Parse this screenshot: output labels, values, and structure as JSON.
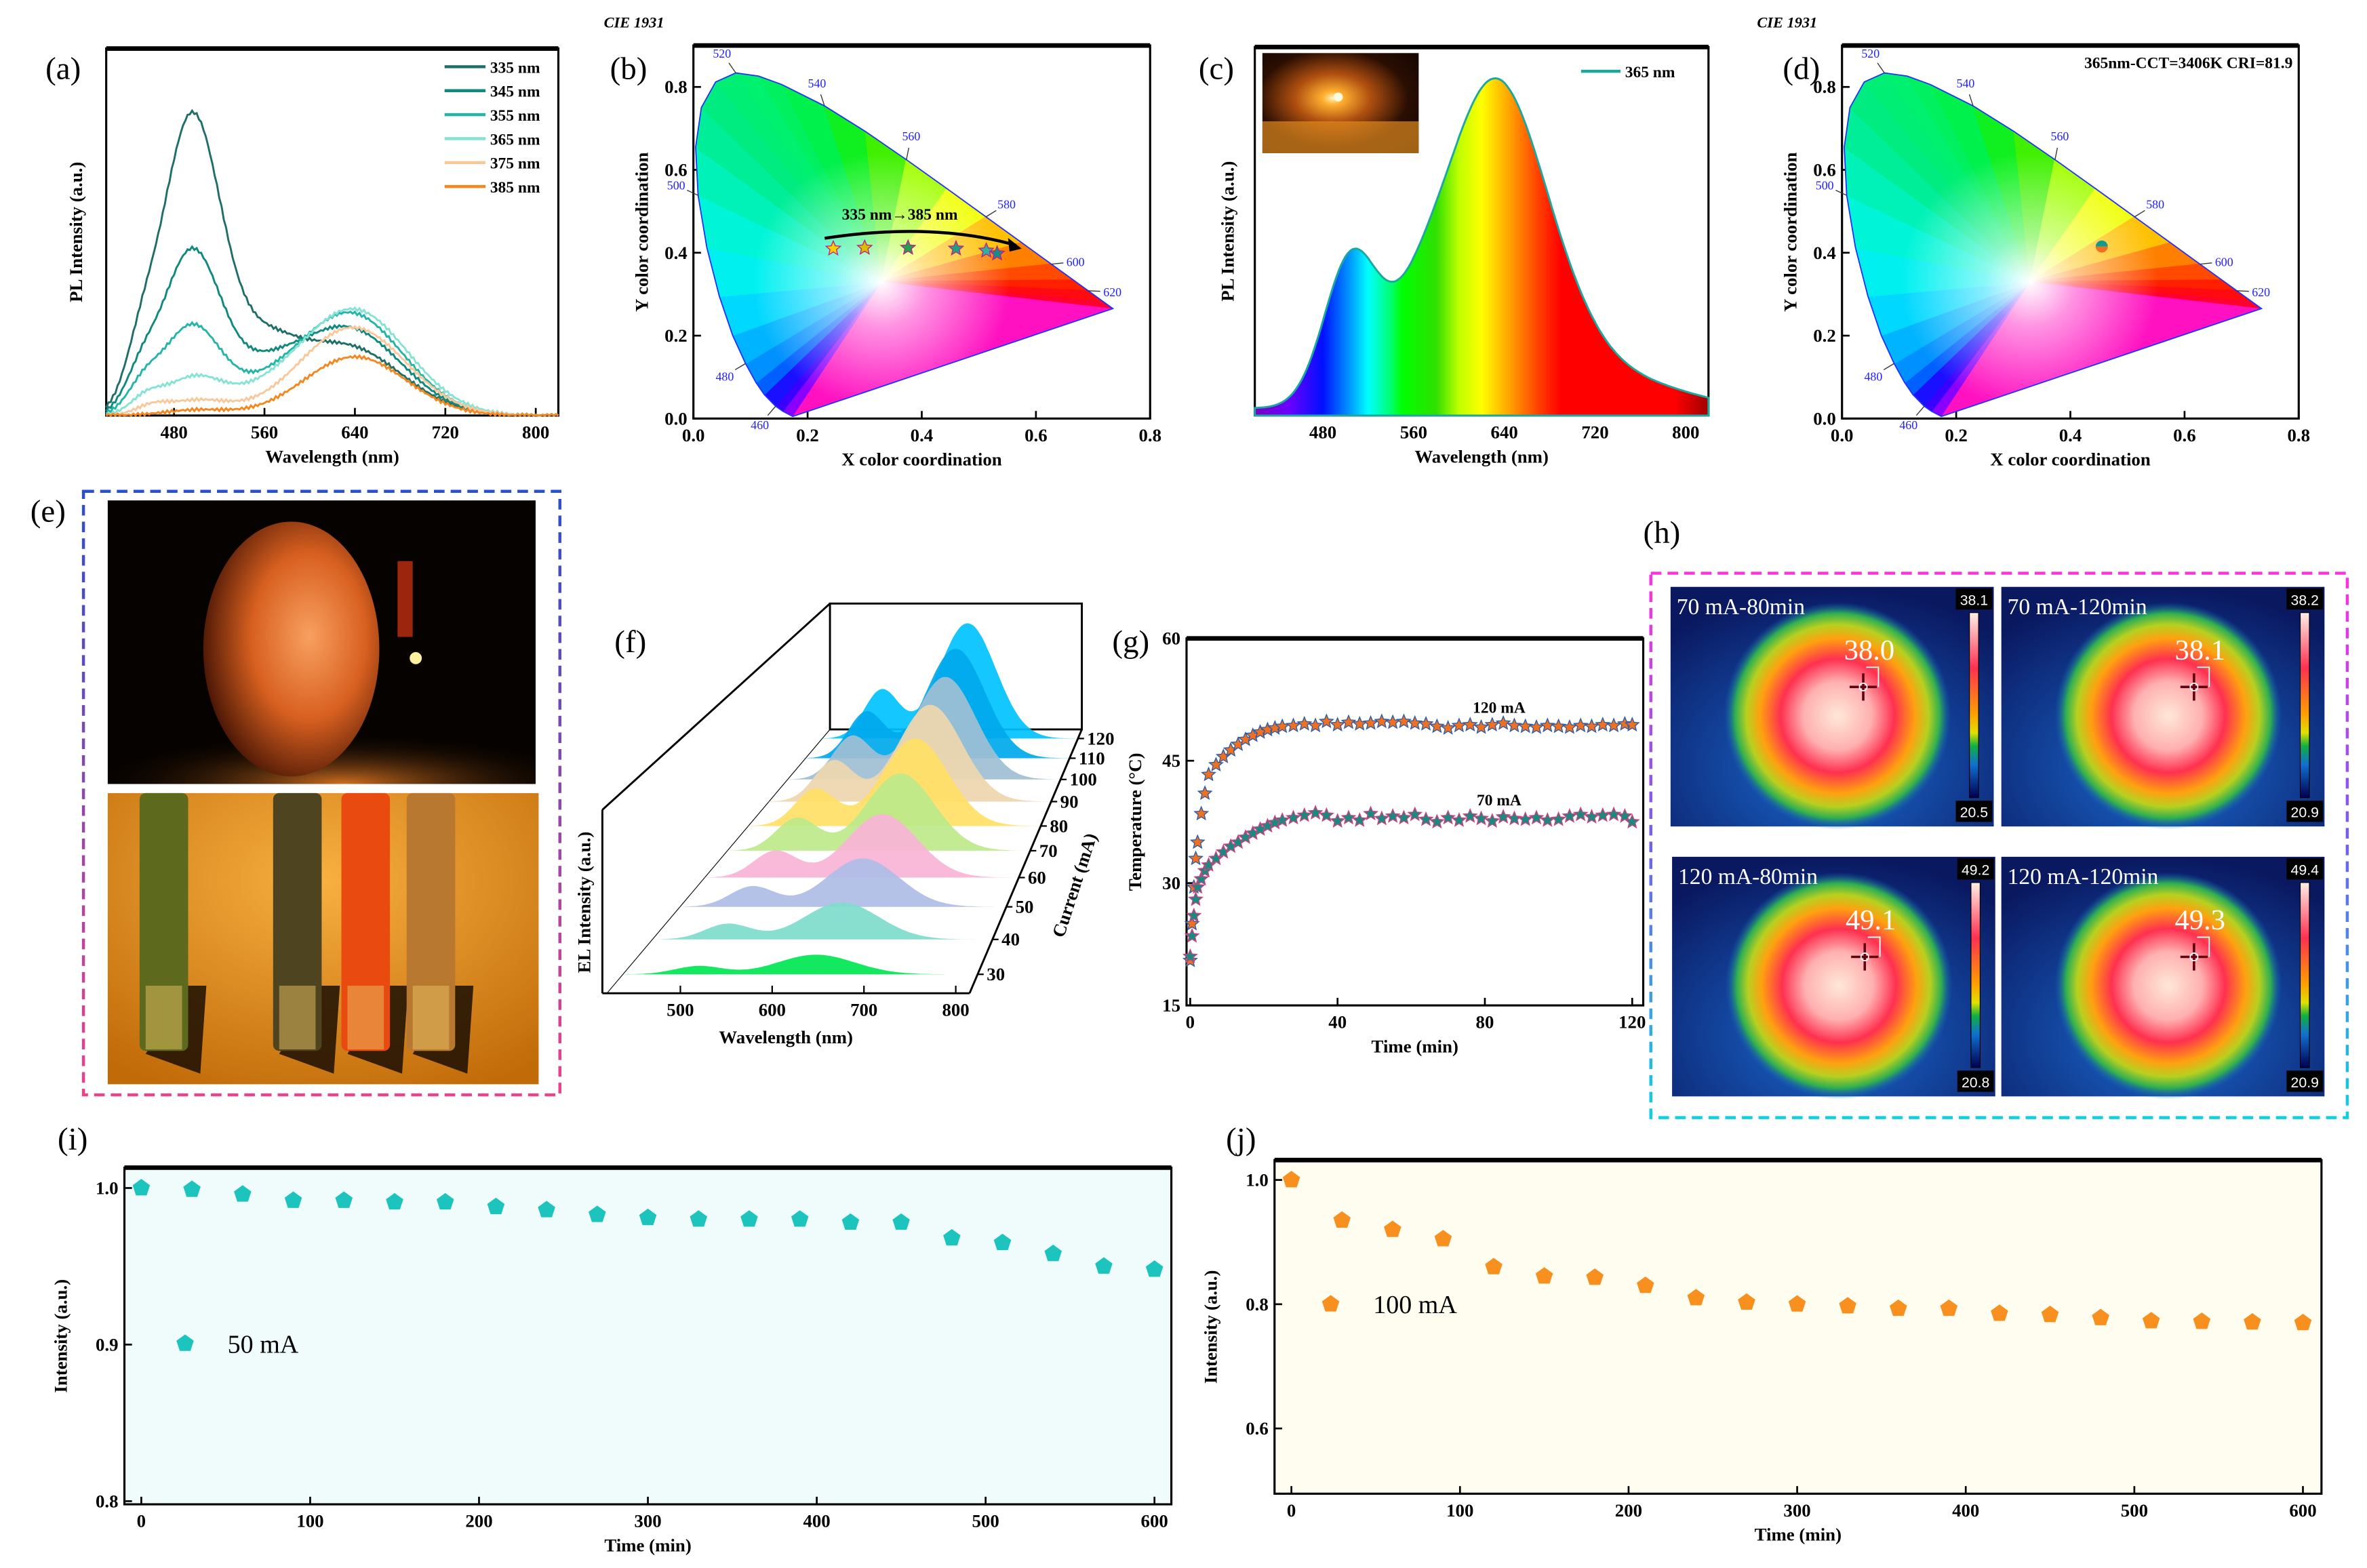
{
  "figure": {
    "cie_label_b": "CIE 1931",
    "cie_label_d": "CIE 1931",
    "panel_labels": {
      "a": "(a)",
      "b": "(b)",
      "c": "(c)",
      "d": "(d)",
      "e": "(e)",
      "f": "(f)",
      "g": "(g)",
      "h": "(h)",
      "i": "(i)",
      "j": "(j)"
    }
  },
  "chart_data": [
    {
      "id": "a",
      "type": "line",
      "xlabel": "Wavelength (nm)",
      "ylabel": "PL Intensity (a.u.)",
      "xlim": [
        420,
        820
      ],
      "ylim": [
        0,
        1
      ],
      "xticks": [
        480,
        560,
        640,
        720,
        800
      ],
      "legend": "top-right",
      "peak_format": "[center_nm, relative_intensity, width_nm]",
      "series": [
        {
          "name": "335 nm",
          "color": "#1f6f68",
          "peaks": [
            [
              450,
              0.12,
              14
            ],
            [
              495,
              0.8,
              26
            ],
            [
              555,
              0.15,
              30
            ],
            [
              630,
              0.19,
              50
            ]
          ]
        },
        {
          "name": "345 nm",
          "color": "#10897e",
          "peaks": [
            [
              450,
              0.08,
              14
            ],
            [
              495,
              0.44,
              26
            ],
            [
              555,
              0.08,
              30
            ],
            [
              632,
              0.24,
              48
            ]
          ]
        },
        {
          "name": "355 nm",
          "color": "#22b5a8",
          "peaks": [
            [
              452,
              0.06,
              14
            ],
            [
              495,
              0.24,
              26
            ],
            [
              555,
              0.04,
              30
            ],
            [
              635,
              0.28,
              47
            ]
          ]
        },
        {
          "name": "365 nm",
          "color": "#86e3d3",
          "peaks": [
            [
              455,
              0.04,
              14
            ],
            [
              497,
              0.1,
              26
            ],
            [
              555,
              0.03,
              30
            ],
            [
              638,
              0.29,
              48
            ]
          ]
        },
        {
          "name": "375 nm",
          "color": "#f9c89a",
          "peaks": [
            [
              460,
              0.02,
              14
            ],
            [
              500,
              0.04,
              28
            ],
            [
              638,
              0.24,
              47
            ]
          ]
        },
        {
          "name": "385 nm",
          "color": "#f5871f",
          "peaks": [
            [
              500,
              0.015,
              28
            ],
            [
              640,
              0.16,
              45
            ]
          ]
        }
      ]
    },
    {
      "id": "b",
      "type": "scatter",
      "title": "CIE 1931",
      "xlabel": "X color coordination",
      "ylabel": "Y color coordination",
      "xlim": [
        0,
        0.8
      ],
      "ylim": [
        0,
        0.9
      ],
      "xticks": [
        0,
        0.2,
        0.4,
        0.6,
        0.8
      ],
      "yticks": [
        0,
        0.2,
        0.4,
        0.6,
        0.8
      ],
      "locus_labels": [
        460,
        480,
        500,
        520,
        540,
        560,
        580,
        600,
        620
      ],
      "annotation": "335 nm→385 nm",
      "points": [
        {
          "label": "335 nm",
          "x": 0.245,
          "y": 0.41
        },
        {
          "label": "345 nm",
          "x": 0.3,
          "y": 0.412
        },
        {
          "label": "355 nm",
          "x": 0.376,
          "y": 0.412
        },
        {
          "label": "365 nm",
          "x": 0.46,
          "y": 0.41
        },
        {
          "label": "375 nm",
          "x": 0.513,
          "y": 0.405
        },
        {
          "label": "385 nm",
          "x": 0.532,
          "y": 0.398
        }
      ]
    },
    {
      "id": "c",
      "type": "area",
      "xlabel": "Wavelength (nm)",
      "ylabel": "PL Intensity (a.u.)",
      "xlim": [
        420,
        820
      ],
      "ylim": [
        0,
        1
      ],
      "xticks": [
        480,
        560,
        640,
        720,
        800
      ],
      "legend": "top-right",
      "series": [
        {
          "name": "365 nm",
          "color": "#1aa8a0",
          "peaks": [
            [
              505,
              0.4,
              24
            ],
            [
              560,
              0.12,
              25
            ],
            [
              630,
              0.87,
              45
            ],
            [
              700,
              0.1,
              40
            ],
            [
              770,
              0.05,
              45
            ]
          ]
        }
      ]
    },
    {
      "id": "d",
      "type": "scatter",
      "title": "CIE 1931",
      "xlabel": "X color coordination",
      "ylabel": "Y color coordination",
      "xlim": [
        0,
        0.8
      ],
      "ylim": [
        0,
        0.9
      ],
      "xticks": [
        0,
        0.2,
        0.4,
        0.6,
        0.8
      ],
      "yticks": [
        0,
        0.2,
        0.4,
        0.6,
        0.8
      ],
      "locus_labels": [
        460,
        480,
        500,
        520,
        540,
        560,
        580,
        600,
        620
      ],
      "annotation": "365nm-CCT=3406K CRI=81.9",
      "points": [
        {
          "label": "365 nm",
          "x": 0.455,
          "y": 0.415
        }
      ]
    },
    {
      "id": "f",
      "type": "area",
      "xlabel": "Wavelength (nm)",
      "ylabel": "EL Intensity (a.u.)",
      "zlabel": "Current (mA)",
      "xlim": [
        420,
        820
      ],
      "xticks": [
        500,
        600,
        700,
        800
      ],
      "currents": [
        30,
        40,
        50,
        60,
        70,
        80,
        90,
        100,
        110,
        120
      ],
      "peak_intensity": [
        0.17,
        0.32,
        0.42,
        0.55,
        0.67,
        0.76,
        0.84,
        0.89,
        0.95,
        1.0
      ],
      "shape_peaks": [
        [
          520,
          0.42,
          26
        ],
        [
          648,
          1.0,
          42
        ]
      ],
      "colors": [
        "#00e650",
        "#7fdccb",
        "#aebde6",
        "#f9b4d6",
        "#bde98a",
        "#ffe066",
        "#eed6ae",
        "#9fbfd2",
        "#00a8ec",
        "#00c2ff"
      ]
    },
    {
      "id": "g",
      "type": "scatter",
      "xlabel": "Time (min)",
      "ylabel": "Temperature (°C)",
      "xlim": [
        -1,
        123
      ],
      "ylim": [
        15,
        60
      ],
      "xticks": [
        0,
        40,
        80,
        120
      ],
      "yticks": [
        15,
        30,
        45,
        60
      ],
      "x": [
        0,
        0.5,
        1,
        1.5,
        2,
        3,
        4,
        5,
        7,
        9,
        11,
        13,
        15,
        17,
        19,
        21,
        23,
        25,
        28,
        31,
        34,
        37,
        40,
        43,
        46,
        49,
        52,
        55,
        58,
        61,
        64,
        67,
        70,
        73,
        76,
        79,
        82,
        85,
        88,
        91,
        94,
        97,
        100,
        103,
        106,
        109,
        112,
        115,
        118,
        120
      ],
      "series": [
        {
          "name": "120 mA",
          "color": "#f07020",
          "edge": "#2a5caa",
          "values": [
            20.5,
            25,
            29.5,
            33,
            35,
            38.5,
            41,
            43.3,
            44.5,
            45.5,
            46.3,
            47,
            47.6,
            48.1,
            48.5,
            48.8,
            49.0,
            49.2,
            49.3,
            49.5,
            49.3,
            49.8,
            49.4,
            49.7,
            49.5,
            49.6,
            49.8,
            49.7,
            49.8,
            49.6,
            49.5,
            49.2,
            49.0,
            49.3,
            49.4,
            49.1,
            49.4,
            49.6,
            49.3,
            49.2,
            49.1,
            49.3,
            49.2,
            49.1,
            49.3,
            49.2,
            49.4,
            49.3,
            49.5,
            49.4
          ]
        },
        {
          "name": "70 mA",
          "color": "#1a8a80",
          "edge": "#d04080",
          "values": [
            21,
            23.5,
            26,
            28,
            29.5,
            30.5,
            31.5,
            32.2,
            33,
            33.8,
            34.5,
            35,
            35.6,
            36.1,
            36.6,
            37,
            37.4,
            37.7,
            38,
            38.3,
            38.6,
            38.3,
            37.6,
            38.0,
            37.7,
            38.5,
            37.9,
            38.2,
            38.0,
            38.4,
            37.8,
            37.5,
            38.0,
            37.7,
            38.2,
            37.9,
            37.6,
            38.1,
            37.9,
            37.8,
            38.0,
            37.7,
            37.8,
            38.2,
            38.4,
            38.1,
            38.3,
            38.4,
            38.2,
            37.5
          ]
        }
      ]
    },
    {
      "id": "i",
      "type": "scatter",
      "xlabel": "Time (min)",
      "ylabel": "Intensity (a.u.)",
      "xlim": [
        -10,
        610
      ],
      "ylim": [
        0.798,
        1.013
      ],
      "xticks": [
        0,
        100,
        200,
        300,
        400,
        500,
        600
      ],
      "yticks": [
        0.8,
        0.9,
        1.0
      ],
      "legend": "50 mA",
      "color": "#1cc4bd",
      "background": "#f0fbfb",
      "x": [
        0,
        30,
        60,
        90,
        120,
        150,
        180,
        210,
        240,
        270,
        300,
        330,
        360,
        390,
        420,
        450,
        480,
        510,
        540,
        570,
        600
      ],
      "values": [
        1.0,
        0.999,
        0.996,
        0.992,
        0.992,
        0.991,
        0.991,
        0.988,
        0.986,
        0.983,
        0.981,
        0.98,
        0.98,
        0.98,
        0.978,
        0.978,
        0.968,
        0.965,
        0.958,
        0.95,
        0.948
      ]
    },
    {
      "id": "j",
      "type": "scatter",
      "xlabel": "Time (min)",
      "ylabel": "Intensity (a.u.)",
      "xlim": [
        -10,
        611
      ],
      "ylim": [
        0.495,
        1.032
      ],
      "xticks": [
        0,
        100,
        200,
        300,
        400,
        500,
        600
      ],
      "yticks": [
        0.6,
        0.8,
        1.0
      ],
      "legend": "100 mA",
      "color": "#f7901e",
      "background": "#fffdf0",
      "x": [
        0,
        30,
        60,
        90,
        120,
        150,
        180,
        210,
        240,
        270,
        300,
        330,
        360,
        390,
        420,
        450,
        480,
        510,
        540,
        570,
        600
      ],
      "values": [
        1.0,
        0.935,
        0.92,
        0.905,
        0.86,
        0.845,
        0.843,
        0.83,
        0.81,
        0.803,
        0.8,
        0.797,
        0.793,
        0.793,
        0.785,
        0.783,
        0.778,
        0.773,
        0.772,
        0.771,
        0.77
      ]
    }
  ],
  "thermal": [
    {
      "title": "70 mA-80min",
      "spot": "38.0",
      "max": "38.1",
      "min": "20.5"
    },
    {
      "title": "70 mA-120min",
      "spot": "38.1",
      "max": "38.2",
      "min": "20.9"
    },
    {
      "title": "120 mA-80min",
      "spot": "49.1",
      "max": "49.2",
      "min": "20.8"
    },
    {
      "title": "120 mA-120min",
      "spot": "49.3",
      "max": "49.4",
      "min": "20.9"
    }
  ]
}
